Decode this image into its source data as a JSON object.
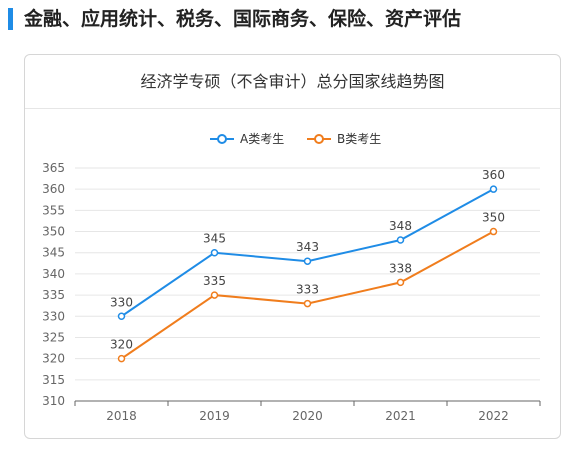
{
  "section": {
    "title": "金融、应用统计、税务、国际商务、保险、资产评估"
  },
  "colors": {
    "accent": "#1f8ce6",
    "series_a": "#1f8ce6",
    "series_b": "#f07d1d",
    "grid": "#e6e6e6",
    "axis": "#666666"
  },
  "chart_data": {
    "type": "line",
    "title": "经济学专硕（不含审计）总分国家线趋势图",
    "categories": [
      "2018",
      "2019",
      "2020",
      "2021",
      "2022"
    ],
    "series": [
      {
        "name": "A类考生",
        "values": [
          330,
          345,
          343,
          348,
          360
        ],
        "color": "#1f8ce6"
      },
      {
        "name": "B类考生",
        "values": [
          320,
          335,
          333,
          338,
          350
        ],
        "color": "#f07d1d"
      }
    ],
    "ylim": [
      310,
      365
    ],
    "yticks": [
      310,
      315,
      320,
      325,
      330,
      335,
      340,
      345,
      350,
      355,
      360,
      365
    ],
    "xlabel": "",
    "ylabel": "",
    "legend": "top-center",
    "grid": true,
    "data_labels": true
  }
}
